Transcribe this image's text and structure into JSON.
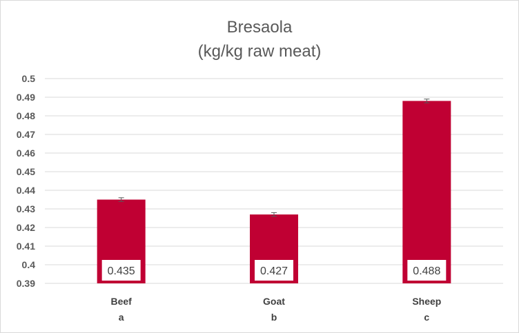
{
  "chart_data": {
    "type": "bar",
    "title": "Bresaola",
    "subtitle": "(kg/kg raw meat)",
    "categories": [
      "Beef",
      "Goat",
      "Sheep"
    ],
    "sublabels": [
      "a",
      "b",
      "c"
    ],
    "values": [
      0.435,
      0.427,
      0.488
    ],
    "value_labels": [
      "0.435",
      "0.427",
      "0.488"
    ],
    "errors": [
      0.001,
      0.001,
      0.001
    ],
    "ylim": [
      0.39,
      0.5
    ],
    "yticks": [
      "0.39",
      "0.4",
      "0.41",
      "0.42",
      "0.43",
      "0.44",
      "0.45",
      "0.46",
      "0.47",
      "0.48",
      "0.49",
      "0.5"
    ],
    "grid": true,
    "legend": "none",
    "bar_color": "#c00033",
    "gridline_color": "#d9d9d9",
    "errorbar_color": "#595959"
  }
}
